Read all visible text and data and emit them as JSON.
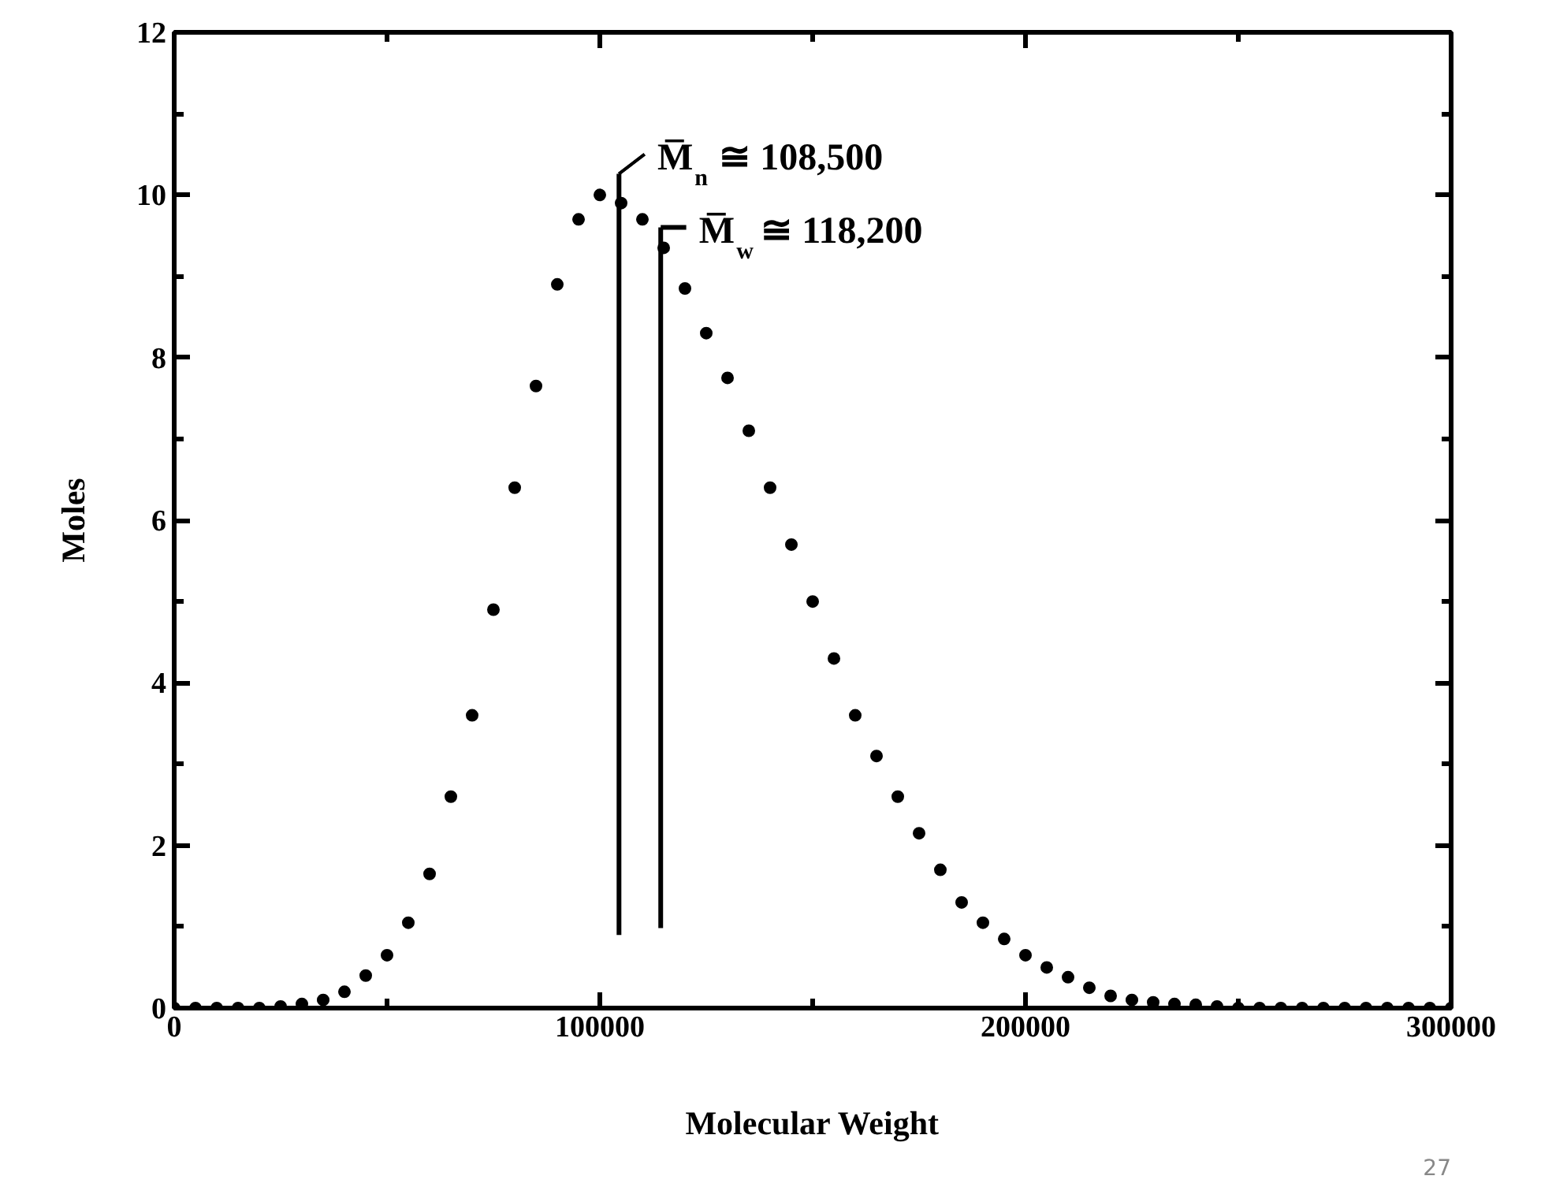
{
  "chart_data": {
    "type": "scatter",
    "xlabel": "Molecular Weight",
    "ylabel": "Moles",
    "x": [
      0,
      5000,
      10000,
      15000,
      20000,
      25000,
      30000,
      35000,
      40000,
      45000,
      50000,
      55000,
      60000,
      65000,
      70000,
      75000,
      80000,
      85000,
      90000,
      95000,
      100000,
      105000,
      110000,
      115000,
      120000,
      125000,
      130000,
      135000,
      140000,
      145000,
      150000,
      155000,
      160000,
      165000,
      170000,
      175000,
      180000,
      185000,
      190000,
      195000,
      200000,
      205000,
      210000,
      215000,
      220000,
      225000,
      230000,
      235000,
      240000,
      245000,
      250000,
      255000,
      260000,
      265000,
      270000,
      275000,
      280000,
      285000,
      290000,
      295000,
      300000
    ],
    "series": [
      {
        "color": "#000000",
        "values": [
          0,
          0,
          0,
          0,
          0,
          0.02,
          0.05,
          0.1,
          0.2,
          0.4,
          0.65,
          1.05,
          1.65,
          2.6,
          3.6,
          4.9,
          6.4,
          7.65,
          8.9,
          9.7,
          10.0,
          9.9,
          9.7,
          9.35,
          8.85,
          8.3,
          7.75,
          7.1,
          6.4,
          5.7,
          5.0,
          4.3,
          3.6,
          3.1,
          2.6,
          2.15,
          1.7,
          1.3,
          1.05,
          0.85,
          0.65,
          0.5,
          0.38,
          0.25,
          0.15,
          0.1,
          0.07,
          0.05,
          0.04,
          0.02,
          0,
          0,
          0,
          0,
          0,
          0,
          0,
          0,
          0,
          0,
          0
        ]
      }
    ],
    "marker": "circle",
    "grid": false,
    "xlim": [
      0,
      300000
    ],
    "xticks": [
      0,
      100000,
      200000,
      300000
    ],
    "ylim": [
      0,
      12
    ],
    "yticks": [
      0,
      2,
      4,
      6,
      8,
      10,
      12
    ],
    "ref_lines": [
      {
        "axis": "x",
        "value": 104500,
        "label": "M̅$_{n}$ ≅ 108,500",
        "color": "#000000"
      },
      {
        "axis": "x",
        "value": 114300,
        "label": "M̅$_{w}$ ≅ 118,200",
        "color": "#000000"
      }
    ],
    "annotations": [
      "27"
    ]
  }
}
